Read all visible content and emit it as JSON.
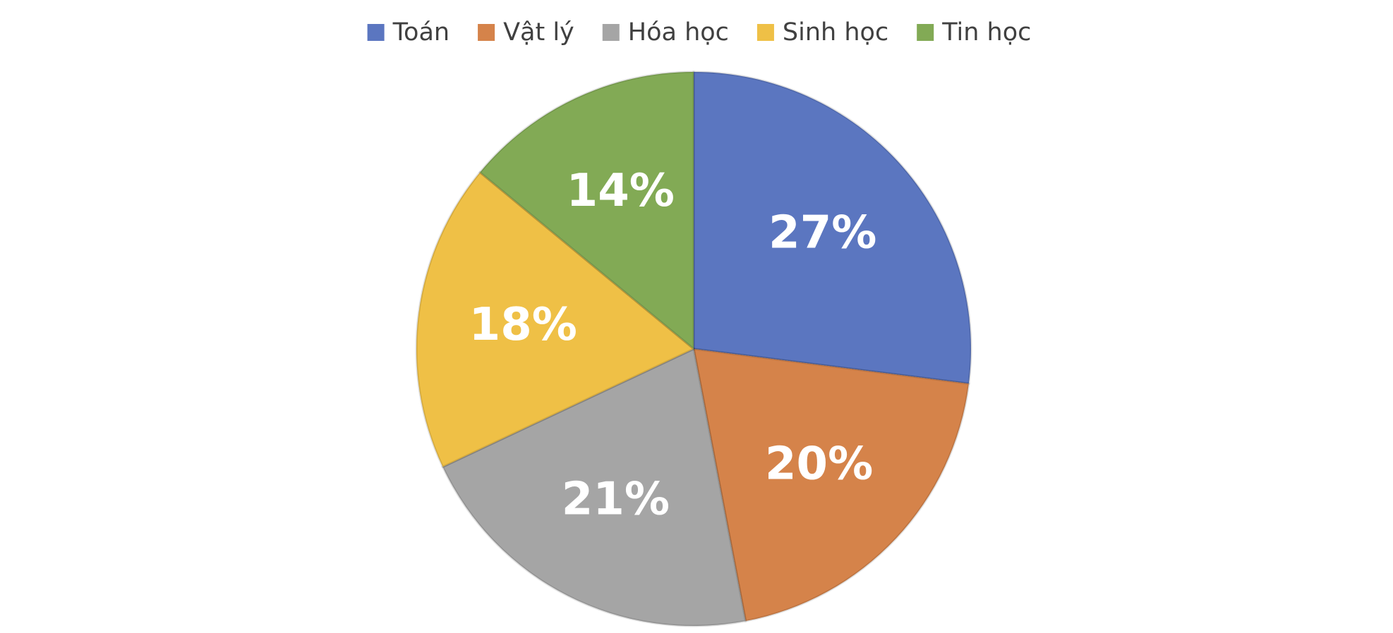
{
  "chart_data": {
    "type": "pie",
    "categories": [
      "Toán",
      "Vật lý",
      "Hóa học",
      "Sinh học",
      "Tin học"
    ],
    "values": [
      27,
      20,
      21,
      18,
      14
    ],
    "value_labels": [
      "27%",
      "20%",
      "21%",
      "18%",
      "14%"
    ],
    "colors": [
      "#5b76c0",
      "#d5834a",
      "#a5a5a5",
      "#efc046",
      "#82aa55"
    ],
    "legend": "top"
  }
}
